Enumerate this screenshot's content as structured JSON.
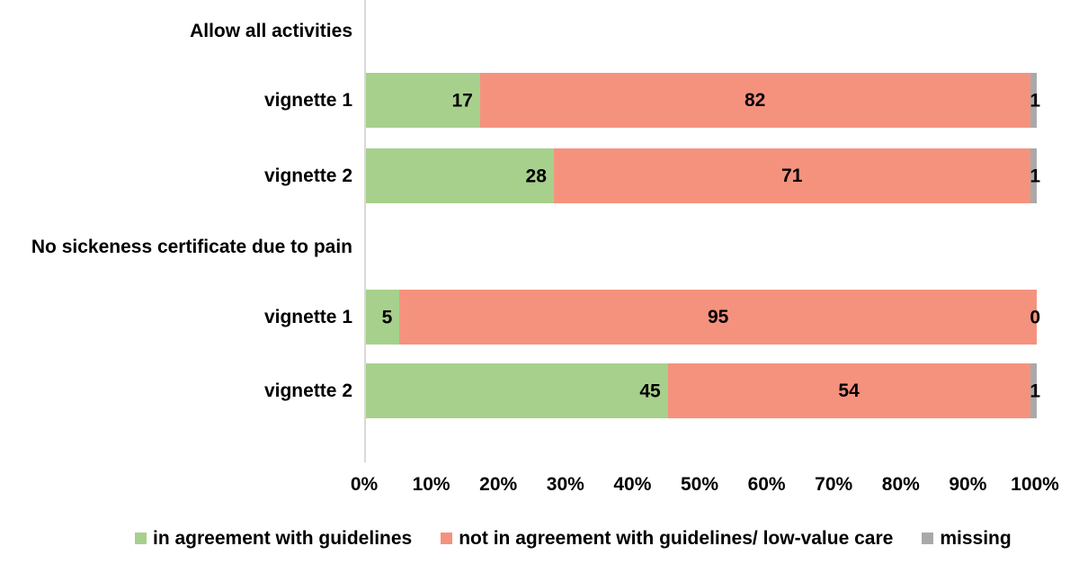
{
  "chart_data": {
    "type": "bar",
    "orientation": "horizontal",
    "stacked": true,
    "unit": "%",
    "xlim": [
      0,
      100
    ],
    "x_ticks": [
      "0%",
      "10%",
      "20%",
      "30%",
      "40%",
      "50%",
      "60%",
      "70%",
      "80%",
      "90%",
      "100%"
    ],
    "grid": false,
    "legend_position": "bottom",
    "series": [
      "in agreement with guidelines",
      "not in agreement with guidelines/ low-value care",
      "missing"
    ],
    "colors": [
      "#a7d08c",
      "#f5927e",
      "#a9a9a9"
    ],
    "axis_line_color": "#d9d9d9",
    "label_color": "#000000",
    "groups": [
      {
        "label": "Allow all activities",
        "rows": [
          {
            "label": "vignette 1",
            "values": [
              17,
              82,
              1
            ]
          },
          {
            "label": "vignette 2",
            "values": [
              28,
              71,
              1
            ]
          }
        ]
      },
      {
        "label": "No sickeness certificate due to pain",
        "rows": [
          {
            "label": "vignette 1",
            "values": [
              5,
              95,
              0
            ]
          },
          {
            "label": "vignette 2",
            "values": [
              45,
              54,
              1
            ]
          }
        ]
      }
    ]
  }
}
